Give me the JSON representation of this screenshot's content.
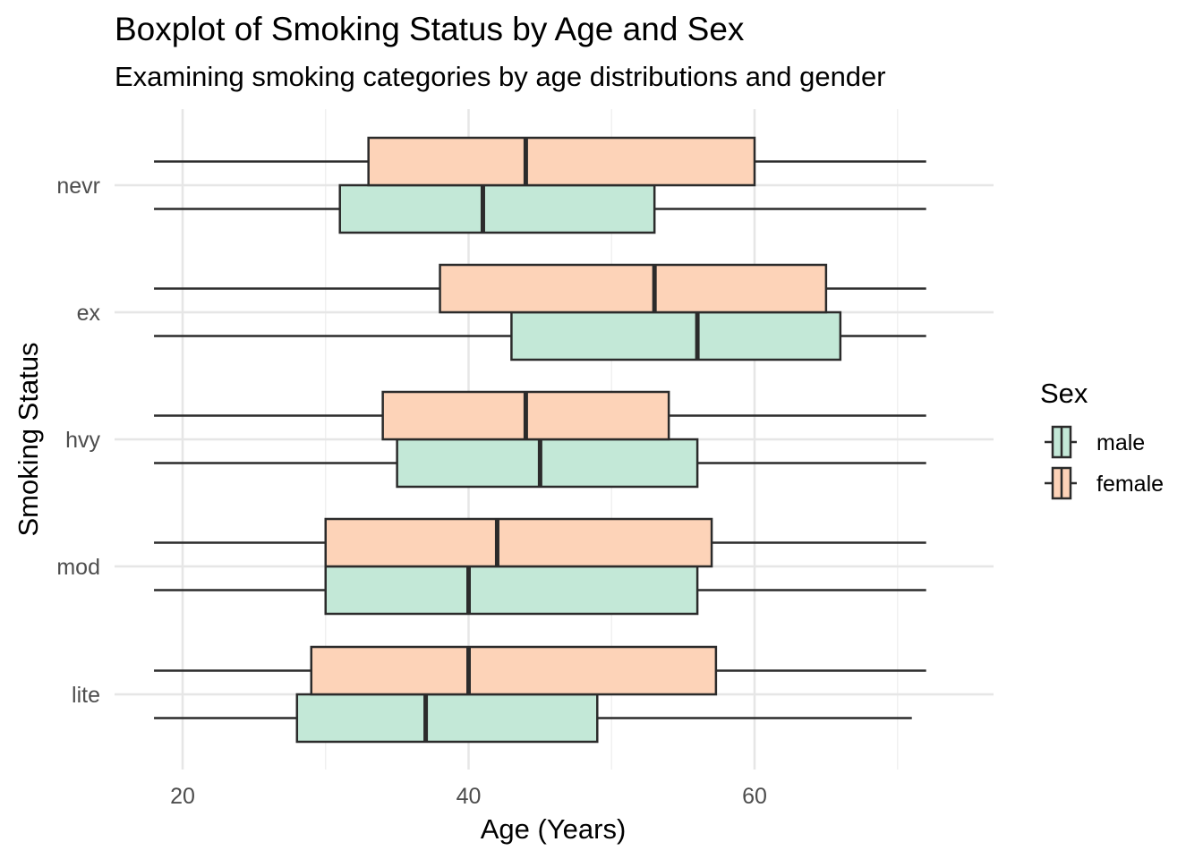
{
  "chart_data": {
    "type": "boxplot",
    "title": "Boxplot of Smoking Status by Age and Sex",
    "subtitle": "Examining smoking categories by age distributions and gender",
    "xlabel": "Age (Years)",
    "ylabel": "Smoking Status",
    "xlim": [
      16,
      73
    ],
    "x_ticks": [
      20,
      40,
      60
    ],
    "categories": [
      "lite",
      "mod",
      "hvy",
      "ex",
      "nevr"
    ],
    "legend": {
      "title": "Sex",
      "position": "right",
      "entries": [
        "male",
        "female"
      ]
    },
    "grid": true,
    "series": [
      {
        "name": "male",
        "color": "#c3e8d7",
        "boxes": [
          {
            "category": "lite",
            "min": 18,
            "q1": 28,
            "median": 37,
            "q3": 49,
            "max": 71
          },
          {
            "category": "mod",
            "min": 18,
            "q1": 30,
            "median": 40,
            "q3": 56,
            "max": 72
          },
          {
            "category": "hvy",
            "min": 18,
            "q1": 35,
            "median": 45,
            "q3": 56,
            "max": 72
          },
          {
            "category": "ex",
            "min": 18,
            "q1": 43,
            "median": 56,
            "q3": 66,
            "max": 72
          },
          {
            "category": "nevr",
            "min": 18,
            "q1": 31,
            "median": 41,
            "q3": 53,
            "max": 72
          }
        ]
      },
      {
        "name": "female",
        "color": "#fdd3b8",
        "boxes": [
          {
            "category": "lite",
            "min": 18,
            "q1": 29,
            "median": 40,
            "q3": 57.3,
            "max": 72
          },
          {
            "category": "mod",
            "min": 18,
            "q1": 30,
            "median": 42,
            "q3": 57,
            "max": 72
          },
          {
            "category": "hvy",
            "min": 18,
            "q1": 34,
            "median": 44,
            "q3": 54,
            "max": 72
          },
          {
            "category": "ex",
            "min": 18,
            "q1": 38,
            "median": 53,
            "q3": 65,
            "max": 72
          },
          {
            "category": "nevr",
            "min": 18,
            "q1": 33,
            "median": 44,
            "q3": 60,
            "max": 72
          }
        ]
      }
    ]
  }
}
